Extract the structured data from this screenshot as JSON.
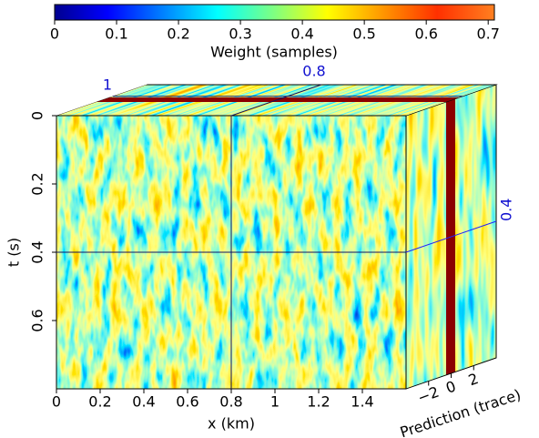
{
  "chart_data": {
    "type": "cube",
    "colorbar": {
      "label": "Weight (samples)",
      "lim": [
        0,
        0.71
      ],
      "ticks": [
        0,
        0.1,
        0.2,
        0.3,
        0.4,
        0.5,
        0.6,
        0.7
      ]
    },
    "x_label": "x (km)",
    "xlim": [
      0,
      1.6
    ],
    "xticks": [
      0,
      0.2,
      0.4,
      0.6,
      0.8,
      1,
      1.2,
      1.4
    ],
    "y_label": "t (s)",
    "ylim": [
      0,
      0.8
    ],
    "yticks": [
      0,
      0.2,
      0.4,
      0.6
    ],
    "z_label": "Prediction (trace)",
    "zlim": [
      -4,
      4
    ],
    "zticks": [
      {
        "value": -2,
        "label": "−2"
      },
      0,
      2
    ],
    "slices": {
      "x": 0.8,
      "y": 0.4,
      "z": 1
    }
  }
}
